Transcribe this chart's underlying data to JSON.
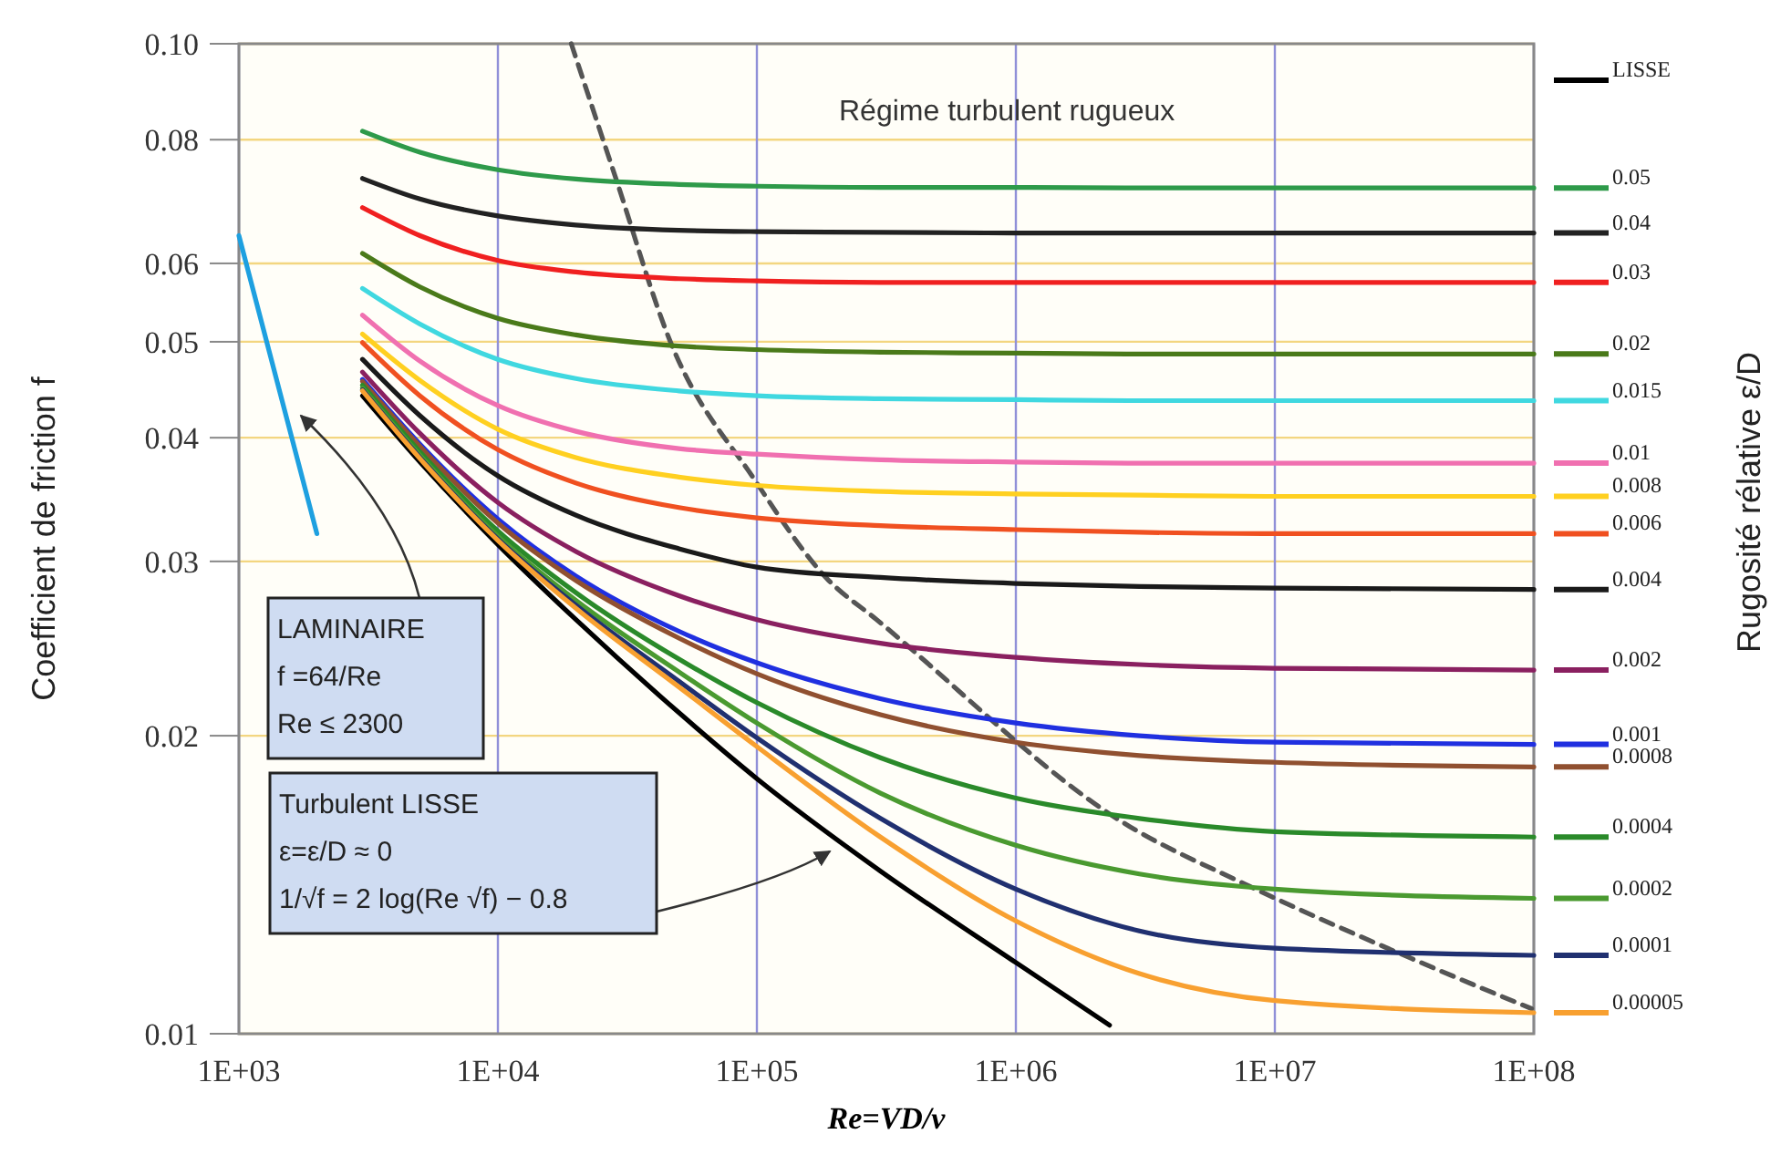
{
  "chart_data": {
    "type": "line",
    "xlabel": "Re=VD/ν",
    "ylabel": "Coefficient de friction f",
    "legend_title": "Rugosité rélative ε/D",
    "log": "xy",
    "grid": true,
    "legend": "right",
    "xlim": [
      1000,
      100000000
    ],
    "ylim": [
      0.01,
      0.1
    ],
    "xticks": [
      {
        "value": 1000,
        "label": "1E+03"
      },
      {
        "value": 10000,
        "label": "1E+04"
      },
      {
        "value": 100000,
        "label": "1E+05"
      },
      {
        "value": 1000000,
        "label": "1E+06"
      },
      {
        "value": 10000000,
        "label": "1E+07"
      },
      {
        "value": 100000000,
        "label": "1E+08"
      }
    ],
    "yticks": [
      0.01,
      0.02,
      0.03,
      0.04,
      0.05,
      0.06,
      0.08,
      {
        "value": 0.1,
        "label": "0.10"
      }
    ],
    "annotations": [
      "Régime turbulent rugueux",
      "LAMINAIRE\nf =64/Re\nRe ≤ 2300",
      "Turbulent  LISSE\nε=ε/D ≈ 0\n1/√f = 2 log(Re √f) − 0.8"
    ],
    "series": [
      {
        "color": "#1ea0e0",
        "x": [
          1000,
          2000
        ],
        "values": [
          0.064,
          0.032
        ]
      },
      {
        "color": "#555555",
        "line_style": "dashed",
        "x": [
          19200,
          28400,
          46200,
          97800,
          187000,
          290000,
          2740000,
          7500000,
          34000000,
          98000000
        ],
        "values": [
          0.1,
          0.0734,
          0.0501,
          0.0363,
          0.0288,
          0.0262,
          0.0162,
          0.0142,
          0.0119,
          0.0106
        ]
      },
      {
        "name": "LISSE",
        "color": "#000000",
        "x": [
          3000,
          5000,
          10000,
          20000,
          50000,
          100000,
          300000,
          1000000,
          2300000
        ],
        "values": [
          0.0441,
          0.0378,
          0.0312,
          0.0262,
          0.0211,
          0.0181,
          0.0146,
          0.0118,
          0.0102
        ]
      },
      {
        "name": "0.05",
        "color": "#2e9a4a",
        "x": [
          3000,
          5000,
          10000,
          20000,
          50000,
          100000,
          300000,
          1000000,
          3000000,
          10000000,
          100000000
        ],
        "values": [
          0.0816,
          0.0777,
          0.0746,
          0.073,
          0.0721,
          0.0718,
          0.0716,
          0.0716,
          0.0715,
          0.0715,
          0.0715
        ]
      },
      {
        "name": "0.04",
        "color": "#222222",
        "x": [
          3000,
          5000,
          10000,
          20000,
          50000,
          100000,
          300000,
          1000000,
          3000000,
          10000000,
          100000000
        ],
        "values": [
          0.0731,
          0.0697,
          0.067,
          0.0656,
          0.0648,
          0.0646,
          0.0645,
          0.0644,
          0.0644,
          0.0644,
          0.0644
        ]
      },
      {
        "name": "0.03",
        "color": "#f02020",
        "x": [
          3000,
          5000,
          10000,
          20000,
          50000,
          100000,
          300000,
          1000000,
          3000000,
          10000000,
          100000000
        ],
        "values": [
          0.0683,
          0.064,
          0.0604,
          0.0588,
          0.0579,
          0.0576,
          0.0574,
          0.0574,
          0.0574,
          0.0574,
          0.0574
        ]
      },
      {
        "name": "0.02",
        "color": "#4a7a1a",
        "x": [
          3000,
          5000,
          10000,
          20000,
          50000,
          100000,
          300000,
          1000000,
          3000000,
          10000000,
          100000000
        ],
        "values": [
          0.0614,
          0.0568,
          0.0528,
          0.0508,
          0.0495,
          0.0491,
          0.0488,
          0.0487,
          0.0486,
          0.0486,
          0.0486
        ]
      },
      {
        "name": "0.015",
        "color": "#40d8e0",
        "x": [
          3000,
          5000,
          10000,
          20000,
          50000,
          100000,
          300000,
          1000000,
          3000000,
          10000000,
          100000000
        ],
        "values": [
          0.0566,
          0.0521,
          0.048,
          0.0459,
          0.0446,
          0.0441,
          0.0438,
          0.0437,
          0.0436,
          0.0436,
          0.0436
        ]
      },
      {
        "name": "0.01",
        "color": "#f070b0",
        "x": [
          3000,
          5000,
          10000,
          20000,
          50000,
          100000,
          300000,
          1000000,
          3000000,
          10000000,
          100000000
        ],
        "values": [
          0.0532,
          0.0478,
          0.0431,
          0.0406,
          0.039,
          0.0385,
          0.038,
          0.0378,
          0.0377,
          0.0377,
          0.0377
        ]
      },
      {
        "name": "0.008",
        "color": "#ffd020",
        "x": [
          3000,
          5000,
          10000,
          20000,
          50000,
          100000,
          300000,
          1000000,
          3000000,
          10000000,
          100000000
        ],
        "values": [
          0.0509,
          0.0457,
          0.0408,
          0.0382,
          0.0365,
          0.0358,
          0.0353,
          0.0351,
          0.035,
          0.0349,
          0.0349
        ]
      },
      {
        "name": "0.006",
        "color": "#f05020",
        "x": [
          3000,
          5000,
          10000,
          20000,
          50000,
          100000,
          300000,
          1000000,
          3000000,
          10000000,
          100000000
        ],
        "values": [
          0.0499,
          0.0441,
          0.0389,
          0.036,
          0.034,
          0.0332,
          0.0326,
          0.0323,
          0.0321,
          0.032,
          0.032
        ]
      },
      {
        "name": "0.004",
        "color": "#1a1a1a",
        "x": [
          3000,
          5000,
          10000,
          20000,
          50000,
          100000,
          300000,
          1000000,
          3000000,
          10000000,
          100000000
        ],
        "values": [
          0.048,
          0.0421,
          0.0366,
          0.0334,
          0.0309,
          0.0296,
          0.0289,
          0.0285,
          0.0283,
          0.0282,
          0.0281
        ]
      },
      {
        "name": "0.002",
        "color": "#8a2060",
        "x": [
          3000,
          5000,
          10000,
          20000,
          50000,
          100000,
          300000,
          1000000,
          3000000,
          10000000,
          100000000
        ],
        "values": [
          0.0466,
          0.0404,
          0.0344,
          0.0307,
          0.0277,
          0.0262,
          0.0248,
          0.024,
          0.0236,
          0.0234,
          0.0233
        ]
      },
      {
        "name": "0.001",
        "color": "#2030e0",
        "x": [
          3000,
          5000,
          10000,
          20000,
          50000,
          100000,
          300000,
          1000000,
          3000000,
          10000000,
          100000000
        ],
        "values": [
          0.0458,
          0.0394,
          0.0331,
          0.029,
          0.0255,
          0.0237,
          0.0218,
          0.0206,
          0.02,
          0.0197,
          0.0196
        ]
      },
      {
        "name": "0.0008",
        "color": "#905030",
        "x": [
          3000,
          5000,
          10000,
          20000,
          50000,
          100000,
          300000,
          1000000,
          3000000,
          10000000,
          100000000
        ],
        "values": [
          0.0456,
          0.0392,
          0.0328,
          0.0287,
          0.0251,
          0.0231,
          0.021,
          0.0197,
          0.0191,
          0.0188,
          0.0186
        ]
      },
      {
        "name": "0.0004",
        "color": "#2a8a2a",
        "x": [
          3000,
          5000,
          10000,
          20000,
          50000,
          100000,
          300000,
          1000000,
          3000000,
          10000000,
          100000000
        ],
        "values": [
          0.0452,
          0.0387,
          0.0322,
          0.0279,
          0.0239,
          0.0216,
          0.019,
          0.0173,
          0.0165,
          0.016,
          0.0158
        ]
      },
      {
        "name": "0.0002",
        "color": "#4a9a30",
        "x": [
          3000,
          5000,
          10000,
          20000,
          50000,
          100000,
          300000,
          1000000,
          3000000,
          10000000,
          100000000
        ],
        "values": [
          0.0449,
          0.0384,
          0.0318,
          0.0274,
          0.0232,
          0.0206,
          0.0175,
          0.0155,
          0.0145,
          0.014,
          0.0137
        ]
      },
      {
        "name": "0.0001",
        "color": "#203070",
        "x": [
          3000,
          5000,
          10000,
          20000,
          50000,
          100000,
          300000,
          1000000,
          3000000,
          10000000,
          100000000
        ],
        "values": [
          0.0447,
          0.0382,
          0.0316,
          0.0271,
          0.0227,
          0.0199,
          0.0165,
          0.014,
          0.0127,
          0.0122,
          0.012
        ]
      },
      {
        "name": "0.00005",
        "color": "#f8a030",
        "x": [
          3000,
          5000,
          10000,
          20000,
          50000,
          100000,
          300000,
          1000000,
          3000000,
          10000000,
          100000000
        ],
        "values": [
          0.0446,
          0.0381,
          0.0315,
          0.0269,
          0.0224,
          0.0195,
          0.0158,
          0.013,
          0.0115,
          0.0108,
          0.0105
        ]
      }
    ]
  }
}
